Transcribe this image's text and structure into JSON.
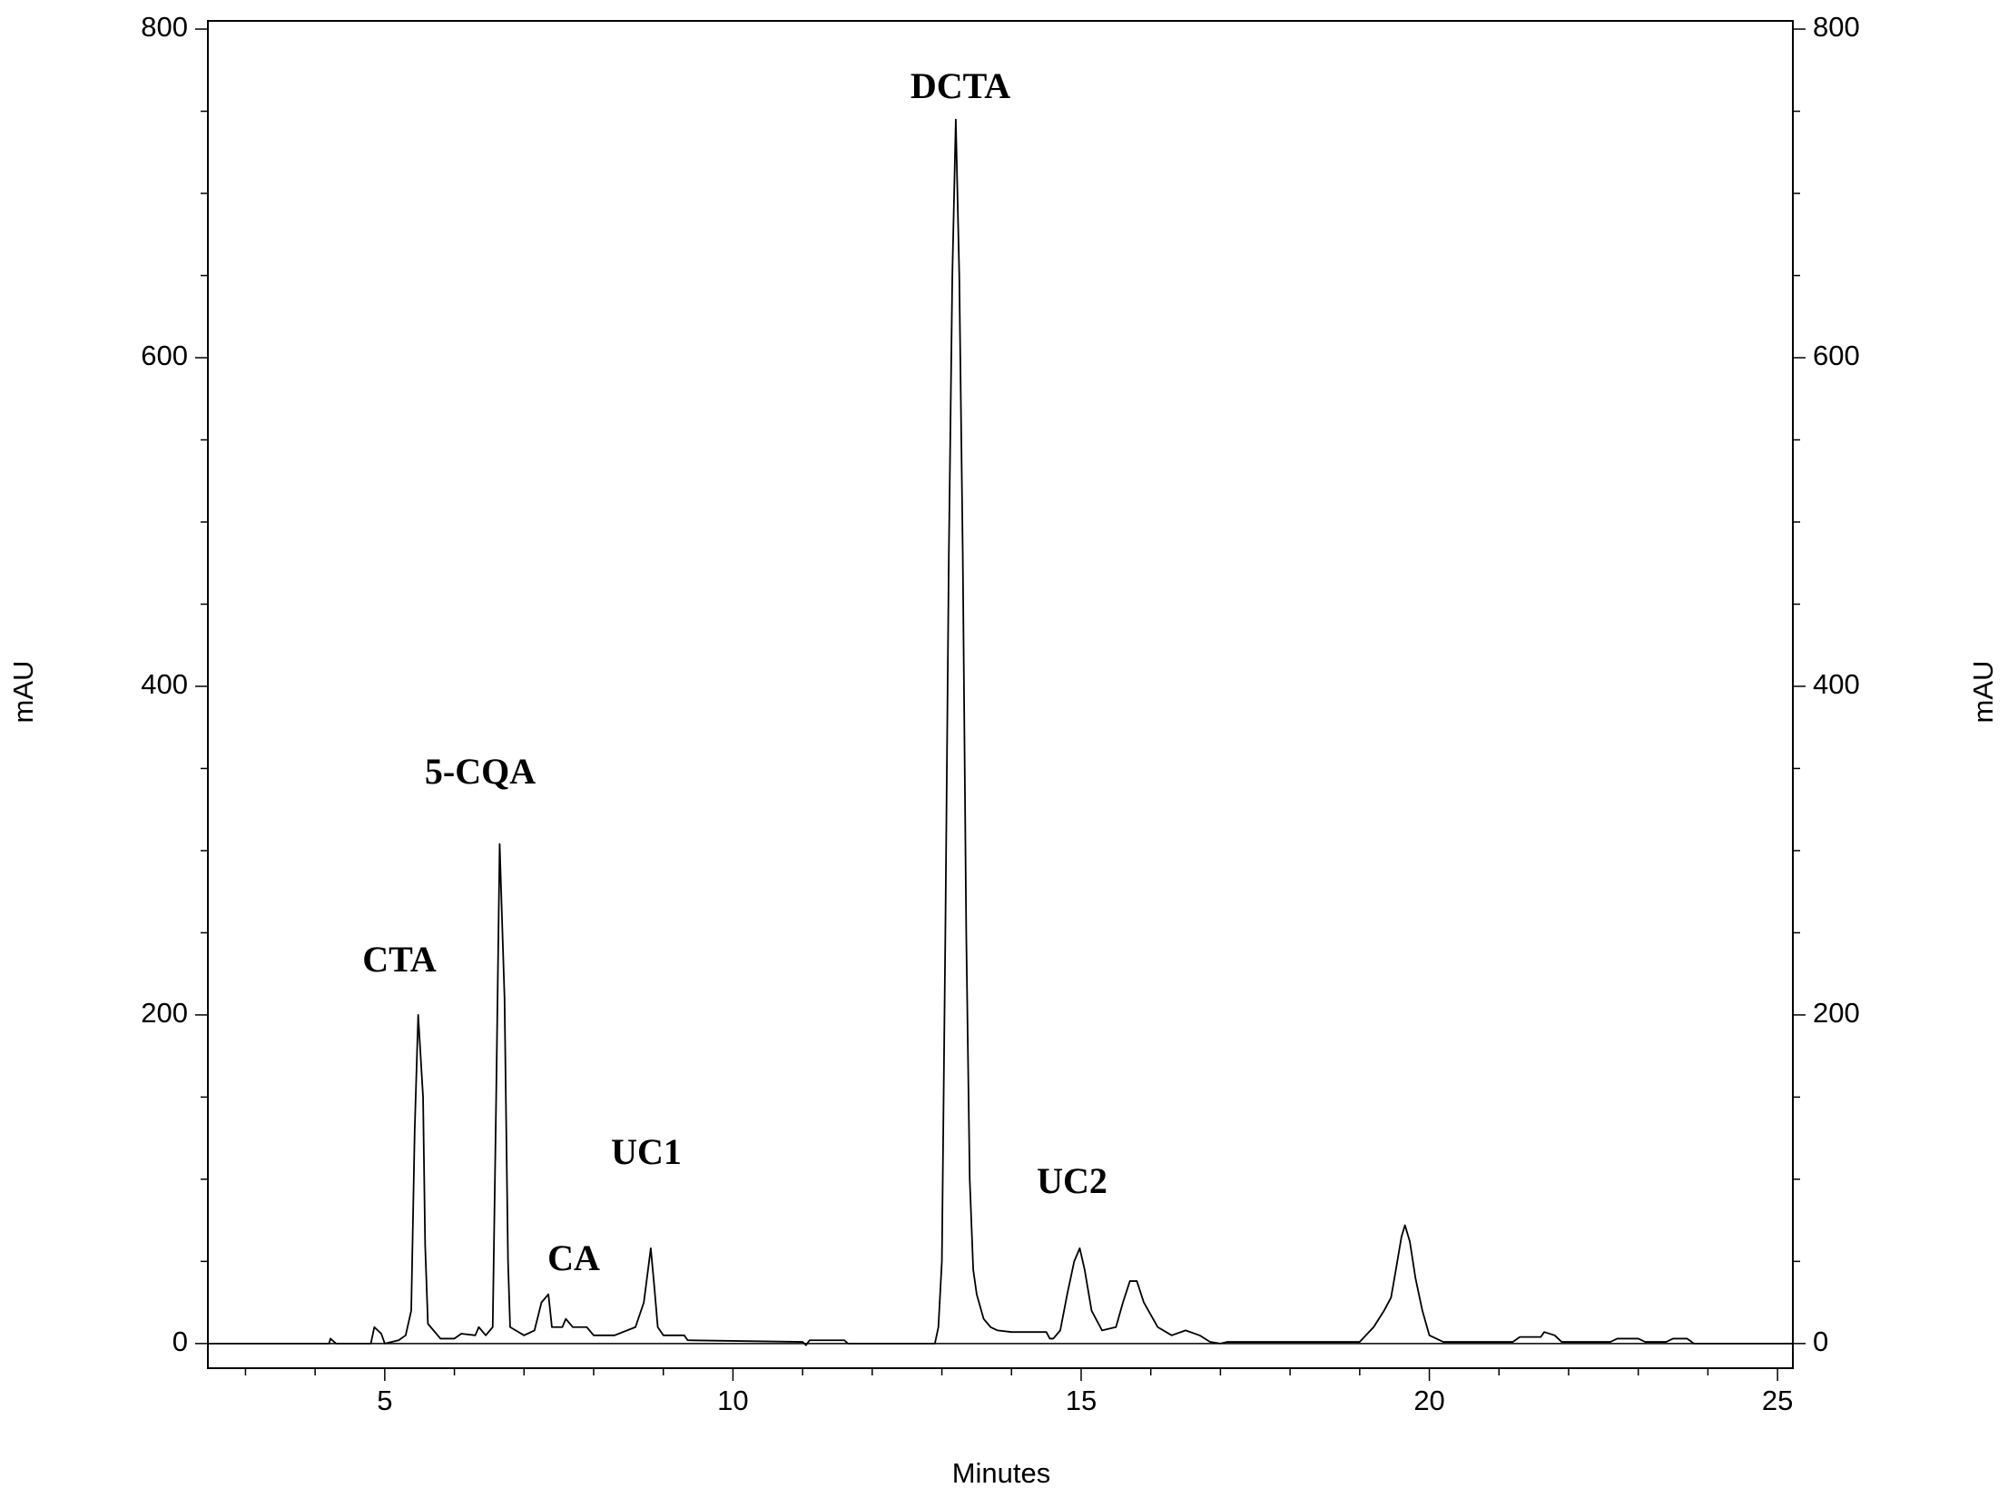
{
  "chart_data": {
    "type": "line",
    "xlabel": "Minutes",
    "ylabel": "mAU",
    "y2label": "mAU",
    "color": "#000000",
    "xlim": [
      2.46,
      25.22
    ],
    "ylim": [
      -15,
      805
    ],
    "y2lim": [
      -15,
      805
    ],
    "xticks": [
      5,
      10,
      15,
      20,
      25
    ],
    "yticks": [
      0,
      200,
      400,
      600,
      800
    ],
    "y2ticks": [
      0,
      200,
      400,
      600,
      800
    ],
    "xminorticks": [
      3,
      4,
      6,
      7,
      8,
      9,
      11,
      12,
      13,
      14,
      16,
      17,
      18,
      19,
      21,
      22,
      23,
      24
    ],
    "yminorticks": [
      50,
      100,
      150,
      250,
      300,
      350,
      450,
      500,
      550,
      650,
      700,
      750
    ],
    "annotations": [
      "CTA",
      "5-CQA",
      "CA",
      "UC1",
      "DCTA",
      "UC2"
    ],
    "x": [
      2.46,
      4.2,
      4.22,
      4.3,
      4.8,
      4.85,
      4.95,
      5.0,
      5.2,
      5.3,
      5.38,
      5.43,
      5.48,
      5.55,
      5.58,
      5.62,
      5.8,
      6.0,
      6.1,
      6.3,
      6.35,
      6.45,
      6.55,
      6.6,
      6.65,
      6.72,
      6.77,
      6.8,
      7.0,
      7.15,
      7.25,
      7.35,
      7.4,
      7.55,
      7.6,
      7.7,
      7.9,
      8.0,
      8.3,
      8.6,
      8.72,
      8.82,
      8.87,
      8.92,
      9.0,
      9.3,
      9.35,
      11.0,
      11.05,
      11.1,
      11.6,
      11.65,
      12.9,
      12.95,
      13.0,
      13.05,
      13.1,
      13.15,
      13.2,
      13.25,
      13.3,
      13.35,
      13.4,
      13.45,
      13.5,
      13.6,
      13.7,
      13.8,
      14.0,
      14.5,
      14.55,
      14.6,
      14.7,
      14.8,
      14.9,
      14.98,
      15.05,
      15.15,
      15.3,
      15.5,
      15.6,
      15.7,
      15.8,
      15.9,
      16.1,
      16.3,
      16.5,
      16.7,
      16.85,
      17.0,
      17.1,
      19.0,
      19.2,
      19.35,
      19.45,
      19.52,
      19.6,
      19.65,
      19.72,
      19.8,
      19.9,
      20.0,
      20.2,
      21.2,
      21.3,
      21.6,
      21.65,
      21.8,
      21.9,
      22.6,
      22.7,
      23.0,
      23.1,
      23.4,
      23.5,
      23.7,
      23.8,
      25.22
    ],
    "values": [
      0,
      0,
      3,
      0,
      0,
      10,
      6,
      0,
      2,
      5,
      20,
      130,
      200,
      150,
      60,
      12,
      3,
      3,
      6,
      5,
      10,
      5,
      10,
      150,
      304,
      210,
      50,
      10,
      5,
      8,
      25,
      30,
      10,
      10,
      15,
      10,
      10,
      5,
      5,
      10,
      25,
      58,
      35,
      10,
      5,
      5,
      2,
      1,
      -1,
      2,
      2,
      0,
      0,
      10,
      50,
      250,
      480,
      650,
      745,
      650,
      480,
      250,
      100,
      45,
      30,
      15,
      10,
      8,
      7,
      7,
      3,
      3,
      8,
      30,
      50,
      58,
      45,
      20,
      8,
      10,
      25,
      38,
      38,
      25,
      10,
      5,
      8,
      5,
      1,
      0,
      1,
      1,
      10,
      20,
      28,
      45,
      65,
      72,
      62,
      40,
      20,
      5,
      1,
      1,
      4,
      4,
      7,
      5,
      1,
      1,
      3,
      3,
      1,
      1,
      3,
      3,
      0,
      0
    ]
  }
}
